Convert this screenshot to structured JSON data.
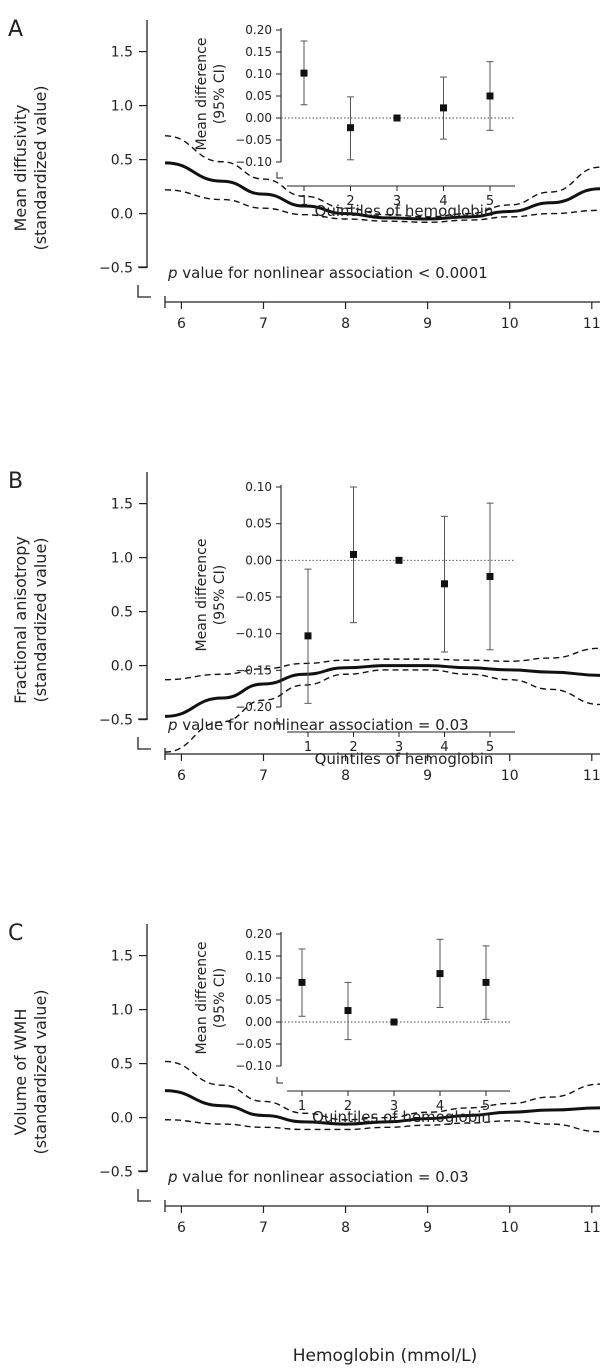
{
  "figure": {
    "xlabel": "Hemoglobin (mmol/L)"
  },
  "chart_data": [
    {
      "panel_label": "A",
      "type": "line",
      "ylabel_lines": [
        "Mean diffusivity",
        "(standardized value)"
      ],
      "xlabel": "Hemoglobin (mmol/L)",
      "xlim": [
        5.8,
        11.1
      ],
      "ylim": [
        -0.8,
        1.7
      ],
      "x_ticks": [
        6,
        7,
        8,
        9,
        10,
        11
      ],
      "y_ticks": [
        -0.5,
        0.0,
        0.5,
        1.0,
        1.5
      ],
      "y_tick_labels": [
        "−0.5",
        "0.0",
        "0.5",
        "1.0",
        "1.5"
      ],
      "annotation": {
        "prefix": "p",
        "text": " value for nonlinear association < 0.0001"
      },
      "series": [
        {
          "x": [
            5.8,
            6.5,
            7.0,
            7.5,
            8.0,
            8.5,
            9.0,
            9.5,
            10.0,
            10.5,
            11.1
          ],
          "y": [
            0.47,
            0.3,
            0.18,
            0.07,
            0.0,
            -0.04,
            -0.05,
            -0.03,
            0.02,
            0.1,
            0.23
          ],
          "style": "solid"
        },
        {
          "x": [
            5.8,
            6.5,
            7.0,
            7.5,
            8.0,
            8.5,
            9.0,
            9.5,
            10.0,
            10.5,
            11.1
          ],
          "y": [
            0.72,
            0.48,
            0.32,
            0.16,
            0.05,
            -0.01,
            -0.03,
            0.0,
            0.08,
            0.2,
            0.43
          ],
          "style": "dashed"
        },
        {
          "x": [
            5.8,
            6.5,
            7.0,
            7.5,
            8.0,
            8.5,
            9.0,
            9.5,
            10.0,
            10.5,
            11.1
          ],
          "y": [
            0.22,
            0.13,
            0.05,
            -0.01,
            -0.05,
            -0.07,
            -0.08,
            -0.06,
            -0.03,
            0.0,
            0.03
          ],
          "style": "dashed"
        }
      ],
      "inset": {
        "type": "scatter",
        "ylabel_lines": [
          "Mean difference",
          "(95% CI)"
        ],
        "xlabel": "Quintiles of hemoglobin",
        "categories": [
          "1",
          "2",
          "3",
          "4",
          "5"
        ],
        "ylim": [
          -0.1,
          0.2
        ],
        "y_ticks": [
          -0.1,
          -0.05,
          0.0,
          0.05,
          0.1,
          0.15,
          0.2
        ],
        "y_tick_labels": [
          "−0.10",
          "−0.05",
          "0.00",
          "0.05",
          "0.10",
          "0.15",
          "0.20"
        ],
        "values": [
          0.102,
          -0.022,
          0.0,
          0.023,
          0.05
        ],
        "lower": [
          0.03,
          -0.095,
          0.0,
          -0.048,
          -0.028
        ],
        "upper": [
          0.175,
          0.048,
          0.0,
          0.093,
          0.128
        ],
        "reference_line": 0.0
      }
    },
    {
      "panel_label": "B",
      "type": "line",
      "ylabel_lines": [
        "Fractional anisotropy",
        "(standardized value)"
      ],
      "xlabel": "Hemoglobin (mmol/L)",
      "xlim": [
        5.8,
        11.1
      ],
      "ylim": [
        -0.8,
        1.7
      ],
      "x_ticks": [
        6,
        7,
        8,
        9,
        10,
        11
      ],
      "y_ticks": [
        -0.5,
        0.0,
        0.5,
        1.0,
        1.5
      ],
      "y_tick_labels": [
        "−0.5",
        "0.0",
        "0.5",
        "1.0",
        "1.5"
      ],
      "annotation": {
        "prefix": "p",
        "text": " value for nonlinear association = 0.03"
      },
      "series": [
        {
          "x": [
            5.8,
            6.5,
            7.0,
            7.5,
            8.0,
            8.5,
            9.0,
            9.5,
            10.0,
            10.5,
            11.1
          ],
          "y": [
            -0.47,
            -0.3,
            -0.17,
            -0.08,
            -0.02,
            0.0,
            0.0,
            -0.02,
            -0.04,
            -0.06,
            -0.09
          ],
          "style": "solid"
        },
        {
          "x": [
            5.8,
            6.5,
            7.0,
            7.5,
            8.0,
            8.5,
            9.0,
            9.5,
            10.0,
            10.5,
            11.1
          ],
          "y": [
            -0.13,
            -0.08,
            -0.03,
            0.02,
            0.05,
            0.06,
            0.06,
            0.05,
            0.04,
            0.07,
            0.16
          ],
          "style": "dashed"
        },
        {
          "x": [
            5.8,
            6.5,
            7.0,
            7.5,
            8.0,
            8.5,
            9.0,
            9.5,
            10.0,
            10.5,
            11.1
          ],
          "y": [
            -0.8,
            -0.52,
            -0.32,
            -0.18,
            -0.08,
            -0.04,
            -0.04,
            -0.08,
            -0.13,
            -0.22,
            -0.36
          ],
          "style": "dashed"
        }
      ],
      "inset": {
        "type": "scatter",
        "ylabel_lines": [
          "Mean difference",
          "(95% CI)"
        ],
        "xlabel": "Quintiles of hemoglobin",
        "categories": [
          "1",
          "2",
          "3",
          "4",
          "5"
        ],
        "ylim": [
          -0.2,
          0.1
        ],
        "y_ticks": [
          -0.2,
          -0.15,
          -0.1,
          -0.05,
          0.0,
          0.05,
          0.1
        ],
        "y_tick_labels": [
          "−0.20",
          "−0.15",
          "−0.10",
          "−0.05",
          "0.00",
          "0.05",
          "0.10"
        ],
        "values": [
          -0.103,
          0.008,
          0.0,
          -0.032,
          -0.022
        ],
        "lower": [
          -0.195,
          -0.085,
          0.0,
          -0.125,
          -0.122
        ],
        "upper": [
          -0.012,
          0.1,
          0.0,
          0.06,
          0.078
        ],
        "reference_line": 0.0
      }
    },
    {
      "panel_label": "C",
      "type": "line",
      "ylabel_lines": [
        "Volume of WMH",
        "(standardized value)"
      ],
      "xlabel": "Hemoglobin (mmol/L)",
      "xlim": [
        5.8,
        11.1
      ],
      "ylim": [
        -0.8,
        1.7
      ],
      "x_ticks": [
        6,
        7,
        8,
        9,
        10,
        11
      ],
      "y_ticks": [
        -0.5,
        0.0,
        0.5,
        1.0,
        1.5
      ],
      "y_tick_labels": [
        "−0.5",
        "0.0",
        "0.5",
        "1.0",
        "1.5"
      ],
      "annotation": {
        "prefix": "p",
        "text": " value for nonlinear association = 0.03"
      },
      "series": [
        {
          "x": [
            5.8,
            6.5,
            7.0,
            7.5,
            8.0,
            8.5,
            9.0,
            9.5,
            10.0,
            10.5,
            11.1
          ],
          "y": [
            0.25,
            0.11,
            0.02,
            -0.04,
            -0.06,
            -0.04,
            -0.01,
            0.02,
            0.05,
            0.07,
            0.09
          ],
          "style": "solid"
        },
        {
          "x": [
            5.8,
            6.5,
            7.0,
            7.5,
            8.0,
            8.5,
            9.0,
            9.5,
            10.0,
            10.5,
            11.1
          ],
          "y": [
            0.52,
            0.3,
            0.15,
            0.04,
            -0.02,
            0.0,
            0.05,
            0.09,
            0.13,
            0.19,
            0.31
          ],
          "style": "dashed"
        },
        {
          "x": [
            5.8,
            6.5,
            7.0,
            7.5,
            8.0,
            8.5,
            9.0,
            9.5,
            10.0,
            10.5,
            11.1
          ],
          "y": [
            -0.02,
            -0.06,
            -0.09,
            -0.11,
            -0.11,
            -0.09,
            -0.07,
            -0.05,
            -0.03,
            -0.06,
            -0.13
          ],
          "style": "dashed"
        }
      ],
      "inset": {
        "type": "scatter",
        "ylabel_lines": [
          "Mean difference",
          "(95% CI)"
        ],
        "xlabel": "Quintiles of hemoglobin",
        "categories": [
          "1",
          "2",
          "3",
          "4",
          "5"
        ],
        "ylim": [
          -0.1,
          0.2
        ],
        "y_ticks": [
          -0.1,
          -0.05,
          0.0,
          0.05,
          0.1,
          0.15,
          0.2
        ],
        "y_tick_labels": [
          "−0.10",
          "−0.05",
          "0.00",
          "0.05",
          "0.10",
          "0.15",
          "0.20"
        ],
        "values": [
          0.09,
          0.026,
          0.0,
          0.11,
          0.09
        ],
        "lower": [
          0.013,
          -0.04,
          0.0,
          0.033,
          0.006
        ],
        "upper": [
          0.166,
          0.09,
          0.0,
          0.188,
          0.173
        ],
        "reference_line": 0.0
      }
    }
  ]
}
